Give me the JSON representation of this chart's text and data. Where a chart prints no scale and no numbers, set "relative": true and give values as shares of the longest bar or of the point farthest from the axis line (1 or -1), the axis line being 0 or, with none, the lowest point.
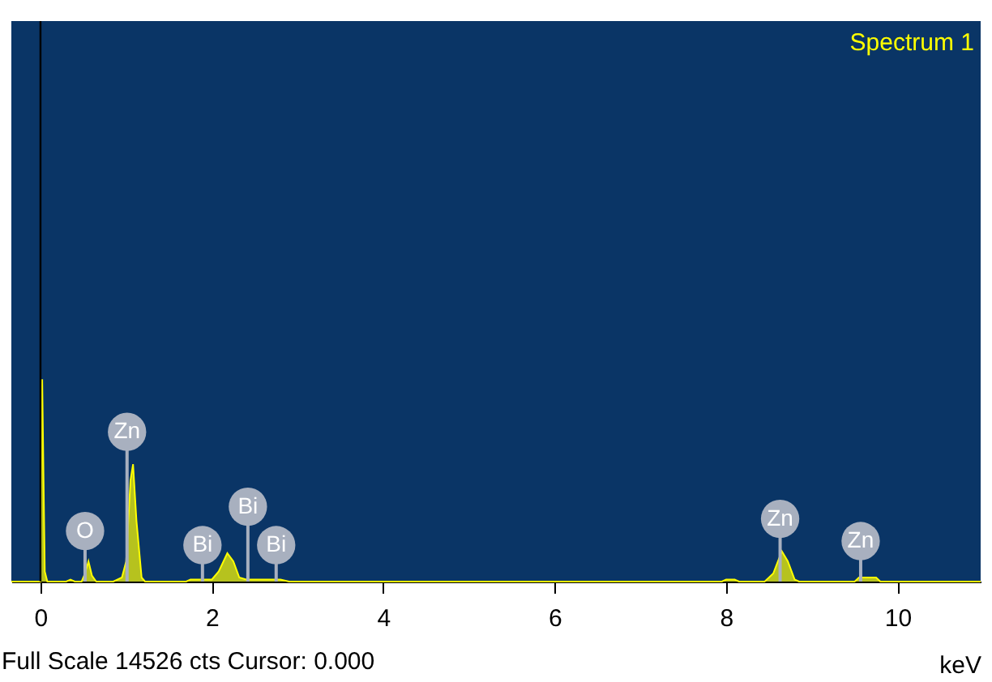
{
  "chart_data": {
    "type": "area",
    "relative": true,
    "xlabel": "keV",
    "xlim": [
      -0.34,
      10.97
    ],
    "xticks": [
      0,
      2,
      4,
      6,
      8,
      10
    ],
    "legend": "top right",
    "grid": false,
    "series": [
      {
        "name": "Spectrum 1",
        "color": "#ffff00",
        "x": [
          -0.34,
          -0.02,
          0.0,
          0.02,
          0.05,
          0.08,
          0.3,
          0.35,
          0.4,
          0.48,
          0.52,
          0.56,
          0.6,
          0.65,
          0.85,
          0.95,
          1.0,
          1.05,
          1.08,
          1.12,
          1.18,
          1.22,
          1.7,
          1.75,
          2.0,
          2.08,
          2.18,
          2.25,
          2.32,
          2.4,
          2.6,
          2.8,
          2.9,
          3.3,
          7.95,
          8.0,
          8.1,
          8.15,
          8.45,
          8.55,
          8.65,
          8.72,
          8.8,
          8.85,
          9.5,
          9.55,
          9.75,
          9.8,
          10.97
        ],
        "values": [
          0,
          0,
          0,
          1.0,
          0.05,
          0,
          0,
          0.01,
          0,
          0,
          0.04,
          0.1,
          0.03,
          0,
          0,
          0.02,
          0.1,
          0.5,
          0.58,
          0.3,
          0.02,
          0,
          0,
          0.01,
          0.01,
          0.05,
          0.14,
          0.1,
          0.02,
          0.01,
          0.01,
          0.01,
          0,
          0,
          0,
          0.01,
          0.01,
          0,
          0,
          0.04,
          0.15,
          0.1,
          0.01,
          0,
          0,
          0.02,
          0.02,
          0,
          0
        ]
      }
    ],
    "ref_lines": [
      {
        "axis": "x",
        "value": 0,
        "color": "#000000"
      }
    ],
    "annotations": [
      {
        "text": "O",
        "x": 0.52,
        "y": 0.25
      },
      {
        "text": "Zn",
        "x": 1.01,
        "y": 0.74
      },
      {
        "text": "Bi",
        "x": 1.89,
        "y": 0.18
      },
      {
        "text": "Bi",
        "x": 2.42,
        "y": 0.37
      },
      {
        "text": "Bi",
        "x": 2.75,
        "y": 0.18
      },
      {
        "text": "Zn",
        "x": 8.63,
        "y": 0.31
      },
      {
        "text": "Zn",
        "x": 9.57,
        "y": 0.2
      },
      "Full Scale 14526 cts Cursor: 0.000"
    ]
  }
}
